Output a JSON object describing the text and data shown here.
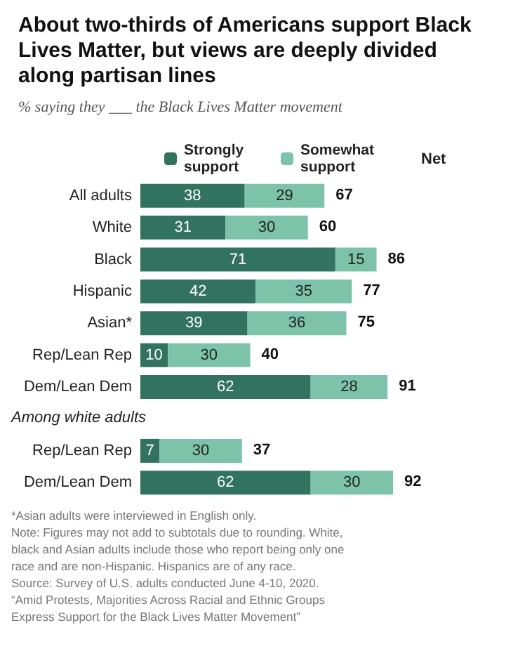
{
  "chart_data": {
    "type": "bar",
    "orientation": "horizontal",
    "stacked": true,
    "data_labels": true,
    "legend": "top",
    "title": "About two-thirds of Americans support Black Lives Matter, but views are deeply divided along partisan lines",
    "subtitle": "% saying they ___ the Black Lives Matter movement",
    "categories": [
      "All adults",
      "White",
      "Black",
      "Hispanic",
      "Asian*",
      "Rep/Lean Rep",
      "Dem/Lean Dem",
      null,
      "Rep/Lean Rep",
      "Dem/Lean Dem"
    ],
    "series": [
      {
        "name": "Strongly support",
        "color": "#31735f",
        "values": [
          38,
          31,
          71,
          42,
          39,
          10,
          62,
          null,
          7,
          62
        ]
      },
      {
        "name": "Somewhat support",
        "color": "#7cc3aa",
        "values": [
          29,
          30,
          15,
          35,
          36,
          30,
          28,
          null,
          30,
          30
        ]
      }
    ],
    "totals": [
      "67",
      "60",
      "86",
      "77",
      "75",
      "40",
      "91",
      null,
      "37",
      "92"
    ],
    "annotations": [
      "Net",
      "Among white adults",
      "*Asian adults were interviewed in English only.",
      "Note: Figures may not add to subtotals due to rounding. White, black and Asian adults include those who report being only one race and are non-Hispanic. Hispanics are of any race.",
      "Source: Survey of U.S. adults conducted June 4-10, 2020.",
      "“Amid Protests, Majorities Across Racial and Ethnic Groups Express Support for the Black Lives Matter Movement”"
    ]
  }
}
